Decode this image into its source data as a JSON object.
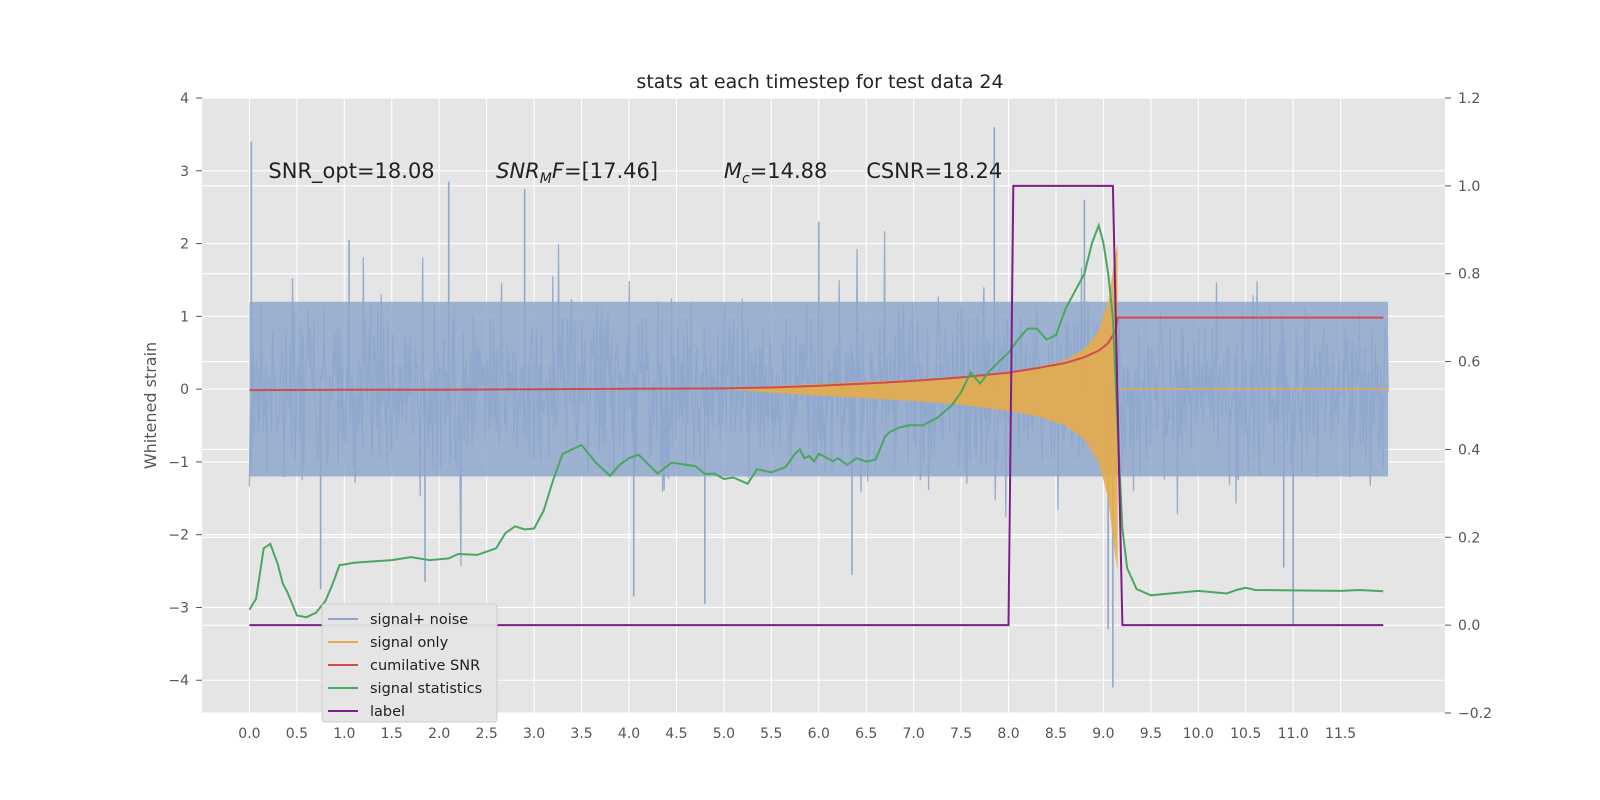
{
  "chart_data": {
    "type": "line",
    "title": "stats at each timestep for test data 24",
    "ylabel": "Whitened strain",
    "xlabel": "",
    "xlim": [
      -0.5,
      12.6
    ],
    "ylim": [
      -4.45,
      4.0
    ],
    "y2lim": [
      -0.2,
      1.2
    ],
    "x_ticks": [
      "0.0",
      "0.5",
      "1.0",
      "1.5",
      "2.0",
      "2.5",
      "3.0",
      "3.5",
      "4.0",
      "4.5",
      "5.0",
      "5.5",
      "6.0",
      "6.5",
      "7.0",
      "7.5",
      "8.0",
      "8.5",
      "9.0",
      "9.5",
      "10.0",
      "10.5",
      "11.0",
      "11.5"
    ],
    "y_ticks": [
      "4",
      "3",
      "2",
      "1",
      "0",
      "−1",
      "−2",
      "−3",
      "−4"
    ],
    "y2_ticks": [
      "1.2",
      "1.0",
      "0.8",
      "0.6",
      "0.4",
      "0.2",
      "0.0",
      "−0.2"
    ],
    "grid": true,
    "legend_position": "lower-left",
    "colors": {
      "signal_noise": "#8fa7cd",
      "signal_only": "#e6ac4a",
      "cumulative_snr": "#d14b4b",
      "signal_statistics": "#4aa760",
      "label": "#7b1f86",
      "background": "#e5e5e5",
      "grid": "#ffffff"
    },
    "annotations": [
      {
        "prefix": "SNR_opt=18.08",
        "x": 0.2
      },
      {
        "math": "SNR",
        "sub": "M",
        "math2": "F",
        "rest": "=[17.46]",
        "x": 2.6
      },
      {
        "math": "M",
        "sub": "c",
        "rest": "=14.88",
        "x": 5.0
      },
      {
        "prefix": "CSNR=18.24",
        "x": 6.5
      }
    ],
    "annotation_y": 2.9,
    "series": [
      {
        "name": "signal+ noise",
        "axis": "left",
        "style": "noise-band",
        "x_range": [
          0.0,
          12.0
        ],
        "typical_amplitude": 1.3,
        "peaks": [
          [
            0.02,
            3.4
          ],
          [
            1.05,
            2.05
          ],
          [
            2.1,
            2.85
          ],
          [
            2.9,
            2.75
          ],
          [
            6.0,
            2.3
          ],
          [
            7.85,
            3.6
          ],
          [
            8.8,
            2.6
          ],
          [
            9.1,
            -4.1
          ],
          [
            9.05,
            -3.3
          ],
          [
            11.0,
            -3.25
          ],
          [
            0.75,
            -2.75
          ],
          [
            1.85,
            -2.65
          ],
          [
            4.05,
            -2.85
          ],
          [
            4.8,
            -2.95
          ],
          [
            6.35,
            -2.55
          ],
          [
            10.9,
            -2.45
          ]
        ]
      },
      {
        "name": "signal only",
        "axis": "left",
        "style": "chirp",
        "x": [
          5.0,
          5.5,
          6.0,
          6.5,
          7.0,
          7.5,
          8.0,
          8.3,
          8.6,
          8.8,
          8.95,
          9.05,
          9.12,
          9.15
        ],
        "envelope": [
          0.0,
          0.04,
          0.07,
          0.1,
          0.13,
          0.17,
          0.24,
          0.3,
          0.4,
          0.55,
          0.8,
          1.2,
          1.8,
          2.0
        ],
        "after_merger": 0.0
      },
      {
        "name": "cumilative SNR",
        "axis": "right",
        "x": [
          0.0,
          1.0,
          2.0,
          3.0,
          4.0,
          5.0,
          5.5,
          6.0,
          6.5,
          7.0,
          7.5,
          8.0,
          8.3,
          8.6,
          8.8,
          8.95,
          9.05,
          9.1,
          9.13,
          9.15,
          11.95
        ],
        "values": [
          0.535,
          0.536,
          0.536,
          0.537,
          0.538,
          0.539,
          0.541,
          0.545,
          0.55,
          0.556,
          0.564,
          0.575,
          0.585,
          0.597,
          0.61,
          0.625,
          0.642,
          0.66,
          0.67,
          0.7,
          0.7
        ]
      },
      {
        "name": "signal statistics",
        "axis": "right",
        "x": [
          0.0,
          0.07,
          0.15,
          0.22,
          0.3,
          0.35,
          0.4,
          0.5,
          0.6,
          0.7,
          0.8,
          0.87,
          0.95,
          1.0,
          1.1,
          1.3,
          1.5,
          1.7,
          1.9,
          2.1,
          2.2,
          2.4,
          2.6,
          2.7,
          2.8,
          2.9,
          3.0,
          3.1,
          3.2,
          3.3,
          3.5,
          3.65,
          3.8,
          3.9,
          4.0,
          4.1,
          4.3,
          4.45,
          4.6,
          4.7,
          4.8,
          4.9,
          5.0,
          5.1,
          5.25,
          5.35,
          5.5,
          5.65,
          5.75,
          5.8,
          5.85,
          5.9,
          5.95,
          6.0,
          6.05,
          6.15,
          6.2,
          6.3,
          6.4,
          6.5,
          6.6,
          6.7,
          6.75,
          6.85,
          6.95,
          7.1,
          7.25,
          7.4,
          7.45,
          7.5,
          7.6,
          7.7,
          7.8,
          7.9,
          8.0,
          8.1,
          8.2,
          8.3,
          8.4,
          8.5,
          8.6,
          8.7,
          8.8,
          8.88,
          8.95,
          9.0,
          9.05,
          9.1,
          9.15,
          9.2,
          9.25,
          9.35,
          9.5,
          9.7,
          10.0,
          10.3,
          10.4,
          10.5,
          10.6,
          11.0,
          11.5,
          11.7,
          11.95
        ],
        "values": [
          0.035,
          0.06,
          0.175,
          0.185,
          0.138,
          0.095,
          0.075,
          0.022,
          0.018,
          0.028,
          0.055,
          0.09,
          0.137,
          0.138,
          0.142,
          0.145,
          0.148,
          0.155,
          0.148,
          0.152,
          0.162,
          0.16,
          0.175,
          0.21,
          0.225,
          0.218,
          0.22,
          0.26,
          0.33,
          0.39,
          0.41,
          0.37,
          0.34,
          0.365,
          0.38,
          0.388,
          0.345,
          0.37,
          0.365,
          0.362,
          0.344,
          0.345,
          0.333,
          0.336,
          0.322,
          0.355,
          0.348,
          0.36,
          0.39,
          0.4,
          0.38,
          0.385,
          0.373,
          0.39,
          0.385,
          0.373,
          0.38,
          0.365,
          0.38,
          0.372,
          0.377,
          0.43,
          0.44,
          0.45,
          0.455,
          0.455,
          0.472,
          0.5,
          0.515,
          0.53,
          0.575,
          0.55,
          0.578,
          0.6,
          0.62,
          0.65,
          0.675,
          0.675,
          0.65,
          0.66,
          0.72,
          0.76,
          0.8,
          0.87,
          0.91,
          0.87,
          0.8,
          0.7,
          0.45,
          0.22,
          0.13,
          0.082,
          0.068,
          0.072,
          0.078,
          0.072,
          0.08,
          0.085,
          0.08,
          0.079,
          0.078,
          0.08,
          0.077
        ],
        "x_extra": []
      },
      {
        "name": "label",
        "axis": "right",
        "x": [
          0.0,
          8.0,
          8.05,
          9.1,
          9.2,
          11.95
        ],
        "values": [
          0.0,
          0.0,
          1.0,
          1.0,
          0.0,
          0.0
        ]
      }
    ]
  }
}
